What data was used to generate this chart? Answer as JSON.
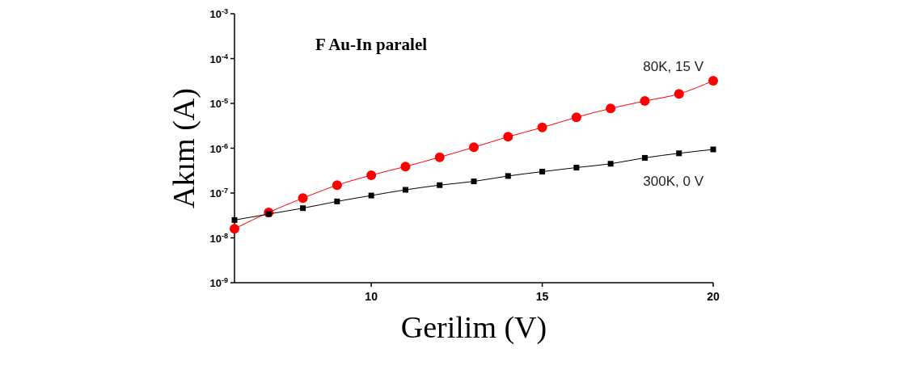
{
  "chart_data": {
    "type": "line",
    "title": "F Au-In paralel",
    "xlabel": "Gerilim (V)",
    "ylabel": "Akım (A)",
    "log": "y",
    "grid": false,
    "line_style": "solid",
    "x": [
      6,
      7,
      8,
      9,
      10,
      11,
      12,
      13,
      14,
      15,
      16,
      17,
      18,
      19,
      20
    ],
    "xlim": [
      6,
      20
    ],
    "xticks": [
      10,
      15,
      20
    ],
    "ylim": [
      1e-09,
      0.001
    ],
    "yticks": [
      {
        "value": 1e-09,
        "label": "10$^{-9}$"
      },
      {
        "value": 1e-08,
        "label": "10$^{-8}$"
      },
      {
        "value": 1e-07,
        "label": "10$^{-7}$"
      },
      {
        "value": 1e-06,
        "label": "10$^{-6}$"
      },
      {
        "value": 1e-05,
        "label": "10$^{-5}$"
      },
      {
        "value": 0.0001,
        "label": "10$^{-4}$"
      },
      {
        "value": 0.001,
        "label": "10$^{-3}$"
      }
    ],
    "series": [
      {
        "name": "80K, 15 V",
        "color": "#ff0000",
        "marker": "circle",
        "values": [
          1.6e-08,
          3.7e-08,
          7.7e-08,
          1.5e-07,
          2.5e-07,
          3.9e-07,
          6.3e-07,
          1.05e-06,
          1.8e-06,
          2.9e-06,
          4.9e-06,
          7.7e-06,
          1.13e-05,
          1.63e-05,
          3.2e-05
        ]
      },
      {
        "name": "300K, 0 V",
        "color": "#000000",
        "marker": "square",
        "values": [
          2.5e-08,
          3.4e-08,
          4.6e-08,
          6.5e-08,
          8.8e-08,
          1.18e-07,
          1.5e-07,
          1.82e-07,
          2.4e-07,
          3e-07,
          3.7e-07,
          4.5e-07,
          6.1e-07,
          7.7e-07,
          9.4e-07
        ]
      }
    ]
  }
}
